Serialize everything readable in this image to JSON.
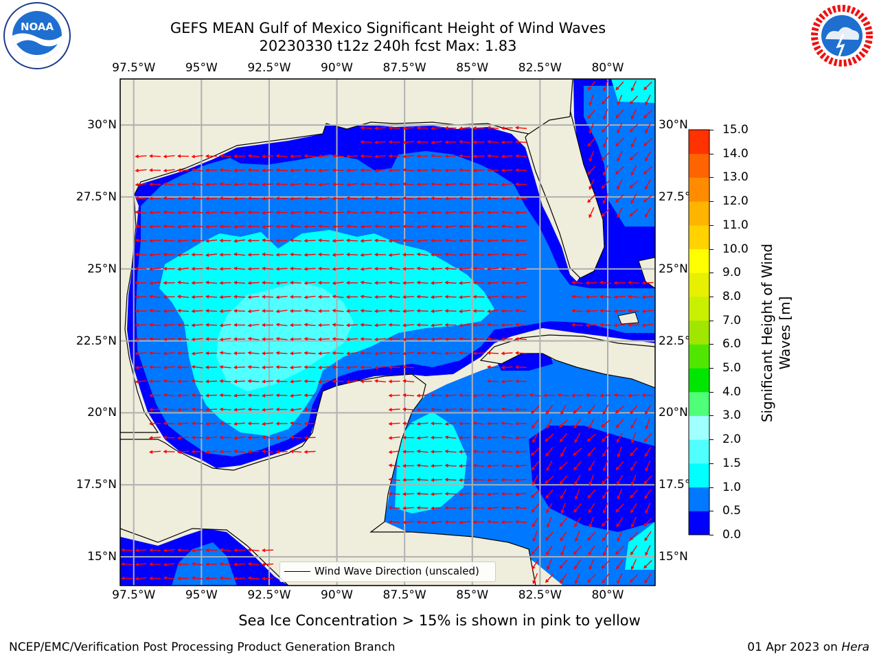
{
  "title": {
    "line1": "GEFS MEAN Gulf of Mexico Significant Height of Wind Waves",
    "line2": "20230330 t12z 240h fcst   Max: 1.83"
  },
  "logos": {
    "left": "noara-logo",
    "left_text": "NOAA",
    "right": "nws-logo"
  },
  "map": {
    "lon_ticks": [
      "97.5°W",
      "95°W",
      "92.5°W",
      "90°W",
      "87.5°W",
      "85°W",
      "82.5°W",
      "80°W"
    ],
    "lat_ticks": [
      "30°N",
      "27.5°N",
      "25°N",
      "22.5°N",
      "20°N",
      "17.5°N",
      "15°N"
    ],
    "lon_range": [
      -98,
      -78.25
    ],
    "lat_range": [
      14,
      31.6
    ],
    "legend_label": "Wind Wave Direction (unscaled)",
    "colors": {
      "land": "#efeddc",
      "grid": "#b0b0b0",
      "arrow": "#ff0000"
    }
  },
  "colorbar": {
    "label": "Significant Height of Wind Waves [m]",
    "label_line1": "Significant Height of Wind",
    "label_line2": "Waves [m]",
    "ticks": [
      "15.0",
      "14.0",
      "13.0",
      "12.0",
      "11.0",
      "10.0",
      "9.0",
      "8.0",
      "7.0",
      "6.0",
      "5.0",
      "4.0",
      "3.0",
      "2.0",
      "1.5",
      "1.0",
      "0.5",
      "0.0"
    ],
    "colors_bottom_to_top": [
      "#0000ff",
      "#0078ff",
      "#00ffff",
      "#50ffff",
      "#a0ffff",
      "#50ff78",
      "#00e600",
      "#50e600",
      "#a0e600",
      "#c8f000",
      "#e6f000",
      "#ffff00",
      "#ffd200",
      "#ffb400",
      "#ff8c00",
      "#ff6400",
      "#ff3200"
    ]
  },
  "ice_note": "Sea Ice Concentration > 15% is shown in pink to yellow",
  "footer": {
    "left": "NCEP/EMC/Verification Post Processing Product Generation Branch",
    "date": "01 Apr 2023 on ",
    "host": "Hera"
  }
}
